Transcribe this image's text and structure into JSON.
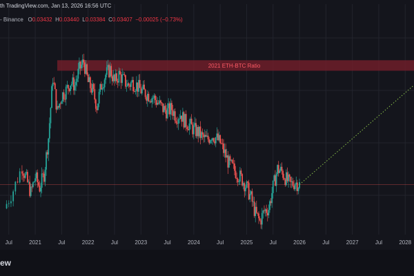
{
  "header": {
    "published_line": "th TradingView.com, Jan 13, 2026 16:56 UTC",
    "symbol_fragment": "- Binance",
    "ohlc": [
      {
        "key": "O",
        "value": "0.03432"
      },
      {
        "key": "H",
        "value": "0.03440"
      },
      {
        "key": "L",
        "value": "0.03384"
      },
      {
        "key": "C",
        "value": "0.03407"
      }
    ],
    "change": "−0.00025 (−0.73%)"
  },
  "footer": {
    "brand_fragment": "ew"
  },
  "colors": {
    "background": "#14151c",
    "grid": "#22242d",
    "up": "#26a69a",
    "down": "#ef5350",
    "zone_fill": "#7a1f2b",
    "zone_text": "#ff5a66",
    "projection": "#8bc34a",
    "last_price_line": "#ef5350",
    "axis_text": "#b2b5be"
  },
  "chart_data": {
    "type": "candlestick",
    "title": "",
    "xlabel": "",
    "ylabel": "",
    "x_ticks": [
      "Jul",
      "2021",
      "Jul",
      "2022",
      "Jul",
      "2023",
      "Jul",
      "2024",
      "Jul",
      "2025",
      "Jul",
      "2026",
      "Jul",
      "2027",
      "Jul",
      "2028"
    ],
    "x_range": [
      "2020-05",
      "2028-03"
    ],
    "y_range": [
      0.015,
      0.095
    ],
    "grid": true,
    "annotation": {
      "label": "2021 ETH-BTC Ratio",
      "from": "2021-06",
      "to": "2028-03",
      "y_low": 0.0775,
      "y_high": 0.0815
    },
    "series": [
      {
        "values": [
          [
            "2020-06",
            0.025
          ],
          [
            "2020-08",
            0.032
          ],
          [
            "2020-10",
            0.041
          ],
          [
            "2020-11",
            0.036
          ],
          [
            "2020-12",
            0.031
          ],
          [
            "2021-01",
            0.037
          ],
          [
            "2021-02",
            0.033
          ],
          [
            "2021-03",
            0.038
          ],
          [
            "2021-04",
            0.052
          ],
          [
            "2021-05",
            0.075
          ],
          [
            "2021-06",
            0.062
          ],
          [
            "2021-07",
            0.068
          ],
          [
            "2021-08",
            0.07
          ],
          [
            "2021-09",
            0.073
          ],
          [
            "2021-10",
            0.072
          ],
          [
            "2021-11",
            0.078
          ],
          [
            "2021-12",
            0.081
          ],
          [
            "2022-01",
            0.073
          ],
          [
            "2022-02",
            0.07
          ],
          [
            "2022-03",
            0.064
          ],
          [
            "2022-04",
            0.072
          ],
          [
            "2022-05",
            0.076
          ],
          [
            "2022-06",
            0.078
          ],
          [
            "2022-07",
            0.073
          ],
          [
            "2022-08",
            0.076
          ],
          [
            "2022-09",
            0.074
          ],
          [
            "2022-10",
            0.072
          ],
          [
            "2022-11",
            0.073
          ],
          [
            "2022-12",
            0.072
          ],
          [
            "2023-01",
            0.07
          ],
          [
            "2023-02",
            0.069
          ],
          [
            "2023-03",
            0.068
          ],
          [
            "2023-04",
            0.067
          ],
          [
            "2023-05",
            0.065
          ],
          [
            "2023-06",
            0.063
          ],
          [
            "2023-07",
            0.062
          ],
          [
            "2023-08",
            0.063
          ],
          [
            "2023-09",
            0.06
          ],
          [
            "2023-10",
            0.061
          ],
          [
            "2023-11",
            0.058
          ],
          [
            "2023-12",
            0.057
          ],
          [
            "2024-01",
            0.055
          ],
          [
            "2024-02",
            0.054
          ],
          [
            "2024-03",
            0.052
          ],
          [
            "2024-04",
            0.051
          ],
          [
            "2024-05",
            0.053
          ],
          [
            "2024-06",
            0.052
          ],
          [
            "2024-07",
            0.05
          ],
          [
            "2024-08",
            0.046
          ],
          [
            "2024-09",
            0.042
          ],
          [
            "2024-10",
            0.04
          ],
          [
            "2024-11",
            0.038
          ],
          [
            "2024-12",
            0.036
          ],
          [
            "2025-01",
            0.033
          ],
          [
            "2025-02",
            0.029
          ],
          [
            "2025-03",
            0.023
          ],
          [
            "2025-04",
            0.02
          ],
          [
            "2025-05",
            0.024
          ],
          [
            "2025-06",
            0.025
          ],
          [
            "2025-07",
            0.033
          ],
          [
            "2025-08",
            0.04
          ],
          [
            "2025-09",
            0.039
          ],
          [
            "2025-10",
            0.036
          ],
          [
            "2025-11",
            0.034
          ],
          [
            "2025-12",
            0.035
          ],
          [
            "2026-01",
            0.03407
          ]
        ]
      }
    ],
    "projection": {
      "style": "dotted",
      "from": [
        "2026-01",
        0.03407
      ],
      "to": [
        "2028-03",
        0.072
      ]
    },
    "last_price": 0.03407
  }
}
